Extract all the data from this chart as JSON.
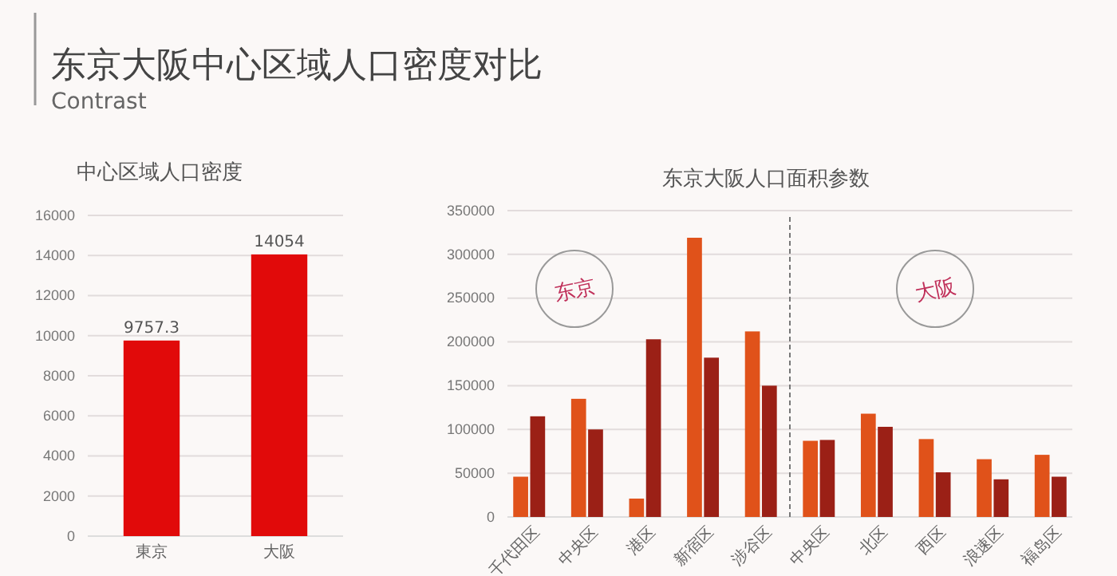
{
  "chart_data": [
    {
      "type": "other",
      "title": "东京大阪中心区域人口密度对比",
      "subtitle": "Contrast"
    },
    {
      "type": "bar",
      "title": "中心区域人口密度",
      "categories": [
        "東京",
        "大阪"
      ],
      "values": [
        9757.3,
        14054
      ],
      "color": "#e10a0a",
      "ylim": [
        0,
        16000
      ],
      "yticks": [
        0,
        2000,
        4000,
        6000,
        8000,
        10000,
        12000,
        14000,
        16000
      ],
      "grid": "y",
      "data_labels": true
    },
    {
      "type": "bar",
      "title": "东京大阪人口面积参数",
      "categories": [
        "千代田区",
        "中央区",
        "港区",
        "新宿区",
        "涉谷区",
        "中央区",
        "北区",
        "西区",
        "浪速区",
        "福岛区"
      ],
      "series": [
        {
          "color": "#e0521a",
          "values": [
            46000,
            135000,
            21000,
            319000,
            212000,
            87000,
            118000,
            89000,
            66000,
            71000
          ]
        },
        {
          "color": "#9b2016",
          "values": [
            115000,
            100000,
            203000,
            182000,
            150000,
            88000,
            103000,
            51000,
            43000,
            46000
          ]
        }
      ],
      "ylim": [
        0,
        350000
      ],
      "yticks": [
        0,
        50000,
        100000,
        150000,
        200000,
        250000,
        300000,
        350000
      ],
      "grid": "y",
      "annotations": [
        "东京",
        "大阪"
      ]
    }
  ]
}
